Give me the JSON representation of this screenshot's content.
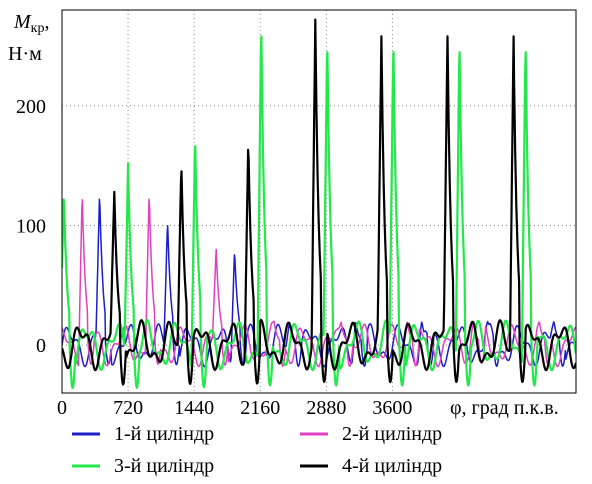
{
  "chart_data": {
    "type": "line",
    "ylabel_main": "M",
    "ylabel_sub": "кр",
    "ylabel_suffix": ",",
    "yunit": "Н·м",
    "xlabel": "φ, град п.к.в.",
    "xlim": [
      0,
      5600
    ],
    "ylim": [
      -40,
      280
    ],
    "xticks": [
      0,
      720,
      1440,
      2160,
      2880,
      3600
    ],
    "xtick_labels": [
      "0",
      "720",
      "1440",
      "2160",
      "2880",
      "3600"
    ],
    "yticks": [
      0,
      100,
      200
    ],
    "ytick_labels": [
      "0",
      "100",
      "200"
    ],
    "grid": "dotted",
    "legend_placement": "bottom",
    "series": [
      {
        "name": "1-й циліндр",
        "color": "#1c1cc8",
        "peaks": [
          [
            410,
            128
          ],
          [
            1150,
            105
          ],
          [
            1880,
            80
          ],
          [
            2480,
            20
          ],
          [
            3200,
            20
          ],
          [
            3920,
            20
          ],
          [
            4640,
            20
          ],
          [
            5360,
            20
          ]
        ],
        "base_amp": 12,
        "min": -18
      },
      {
        "name": "2-й циліндр",
        "color": "#e040c0",
        "peaks": [
          [
            220,
            128
          ],
          [
            950,
            128
          ],
          [
            1680,
            80
          ],
          [
            2310,
            20
          ],
          [
            3040,
            20
          ],
          [
            3760,
            20
          ],
          [
            4480,
            20
          ],
          [
            5200,
            20
          ]
        ],
        "base_amp": 12,
        "min": -18
      },
      {
        "name": "3-й циліндр",
        "color": "#22e84a",
        "peaks": [
          [
            20,
            128
          ],
          [
            720,
            152
          ],
          [
            1450,
            175
          ],
          [
            2170,
            272
          ],
          [
            2890,
            258
          ],
          [
            3610,
            258
          ],
          [
            4330,
            258
          ],
          [
            5050,
            258
          ]
        ],
        "base_amp": 14,
        "min": -38
      },
      {
        "name": "4-й циліндр",
        "color": "#000000",
        "peaks": [
          [
            570,
            128
          ],
          [
            1300,
            153
          ],
          [
            2030,
            172
          ],
          [
            2760,
            272
          ],
          [
            3480,
            258
          ],
          [
            4200,
            258
          ],
          [
            4920,
            258
          ],
          [
            5640,
            258
          ]
        ],
        "base_amp": 14,
        "min": -35
      }
    ]
  }
}
